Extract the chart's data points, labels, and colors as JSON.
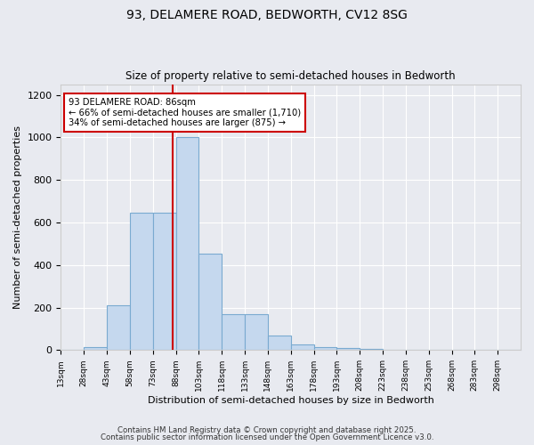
{
  "title1": "93, DELAMERE ROAD, BEDWORTH, CV12 8SG",
  "title2": "Size of property relative to semi-detached houses in Bedworth",
  "xlabel": "Distribution of semi-detached houses by size in Bedworth",
  "ylabel": "Number of semi-detached properties",
  "bin_edges": [
    13,
    28,
    43,
    58,
    73,
    88,
    103,
    118,
    133,
    148,
    163,
    178,
    193,
    208,
    223,
    238,
    253,
    268,
    283,
    298,
    313
  ],
  "bar_heights": [
    0,
    15,
    210,
    645,
    645,
    1000,
    455,
    170,
    170,
    70,
    25,
    15,
    10,
    5,
    2,
    0,
    0,
    0,
    0,
    0
  ],
  "bar_color": "#c5d8ee",
  "bar_edge_color": "#7aaad0",
  "property_size": 86,
  "red_line_color": "#cc0000",
  "annotation_text": "93 DELAMERE ROAD: 86sqm\n← 66% of semi-detached houses are smaller (1,710)\n34% of semi-detached houses are larger (875) →",
  "annotation_box_color": "#ffffff",
  "annotation_box_edge": "#cc0000",
  "ylim": [
    0,
    1250
  ],
  "yticks": [
    0,
    200,
    400,
    600,
    800,
    1000,
    1200
  ],
  "background_color": "#e8eaf0",
  "footer1": "Contains HM Land Registry data © Crown copyright and database right 2025.",
  "footer2": "Contains public sector information licensed under the Open Government Licence v3.0."
}
